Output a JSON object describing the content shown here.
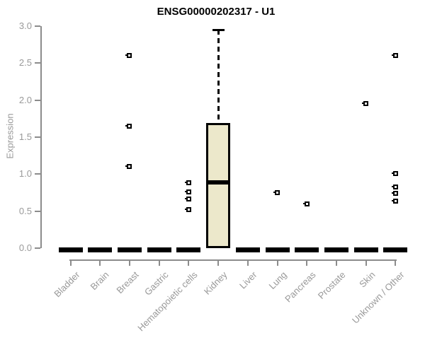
{
  "chart_data": {
    "type": "boxplot",
    "title": "ENSG00000202317 - U1",
    "ylabel": "Expression",
    "ylim": [
      0.0,
      3.0
    ],
    "yticks": [
      "0.0",
      "0.5",
      "1.0",
      "1.5",
      "2.0",
      "2.5",
      "3.0"
    ],
    "categories": [
      "Bladder",
      "Brain",
      "Breast",
      "Gastric",
      "Hematopoietic cells",
      "Kidney",
      "Liver",
      "Lung",
      "Pancreas",
      "Prostate",
      "Skin",
      "Unknown / Other"
    ],
    "series": [
      {
        "category": "Bladder",
        "min": 0,
        "q1": 0,
        "median": 0,
        "q3": 0,
        "max": 0,
        "outliers": []
      },
      {
        "category": "Brain",
        "min": 0,
        "q1": 0,
        "median": 0,
        "q3": 0,
        "max": 0,
        "outliers": []
      },
      {
        "category": "Breast",
        "min": 0,
        "q1": 0,
        "median": 0,
        "q3": 0,
        "max": 0,
        "outliers": [
          2.6,
          1.65,
          1.1
        ]
      },
      {
        "category": "Gastric",
        "min": 0,
        "q1": 0,
        "median": 0,
        "q3": 0,
        "max": 0,
        "outliers": []
      },
      {
        "category": "Hematopoietic cells",
        "min": 0,
        "q1": 0,
        "median": 0,
        "q3": 0,
        "max": 0,
        "outliers": [
          0.88,
          0.76,
          0.66,
          0.52
        ]
      },
      {
        "category": "Kidney",
        "min": 0,
        "q1": 0,
        "median": 0.89,
        "q3": 1.69,
        "max": 2.95,
        "outliers": []
      },
      {
        "category": "Liver",
        "min": 0,
        "q1": 0,
        "median": 0,
        "q3": 0,
        "max": 0,
        "outliers": []
      },
      {
        "category": "Lung",
        "min": 0,
        "q1": 0,
        "median": 0,
        "q3": 0,
        "max": 0,
        "outliers": [
          0.75
        ]
      },
      {
        "category": "Pancreas",
        "min": 0,
        "q1": 0,
        "median": 0,
        "q3": 0,
        "max": 0,
        "outliers": [
          0.6
        ]
      },
      {
        "category": "Prostate",
        "min": 0,
        "q1": 0,
        "median": 0,
        "q3": 0,
        "max": 0,
        "outliers": []
      },
      {
        "category": "Skin",
        "min": 0,
        "q1": 0,
        "median": 0,
        "q3": 0,
        "max": 0,
        "outliers": [
          1.95
        ]
      },
      {
        "category": "Unknown / Other",
        "min": 0,
        "q1": 0,
        "median": 0,
        "q3": 0,
        "max": 0,
        "outliers": [
          2.6,
          1.01,
          0.83,
          0.74,
          0.64
        ]
      }
    ],
    "layout": {
      "grid": false,
      "legend": null,
      "x_label_rotation_deg": 45
    },
    "colors": {
      "box_fill": "#ece8cb",
      "box_border": "#000000",
      "axis": "#8c8c8c",
      "tick_label": "#999999",
      "title": "#000000"
    }
  }
}
